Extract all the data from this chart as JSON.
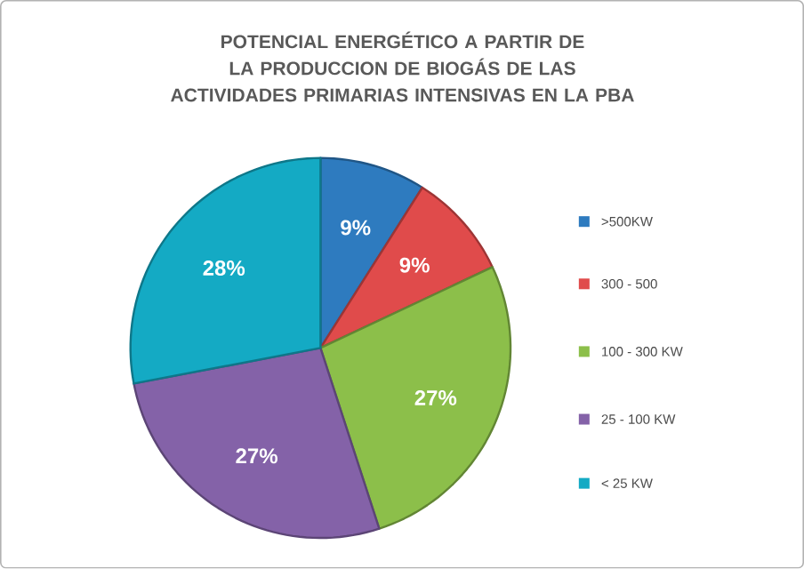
{
  "chart_data": {
    "type": "pie",
    "title": "POTENCIAL ENERGÉTICO A PARTIR DE LA PRODUCCION DE BIOGÁS DE LAS ACTIVIDADES PRIMARIAS INTENSIVAS EN LA PBA",
    "categories": [
      ">500KW",
      "300 - 500",
      "100 - 300 KW",
      "25 - 100 KW",
      "< 25 KW"
    ],
    "values": [
      9,
      9,
      27,
      27,
      28
    ],
    "colors": [
      "#2e7bbf",
      "#e04b4b",
      "#8cbf4a",
      "#8462a8",
      "#14aac4"
    ],
    "value_labels": [
      "9%",
      "9%",
      "27%",
      "27%",
      "28%"
    ],
    "legend": "right"
  }
}
